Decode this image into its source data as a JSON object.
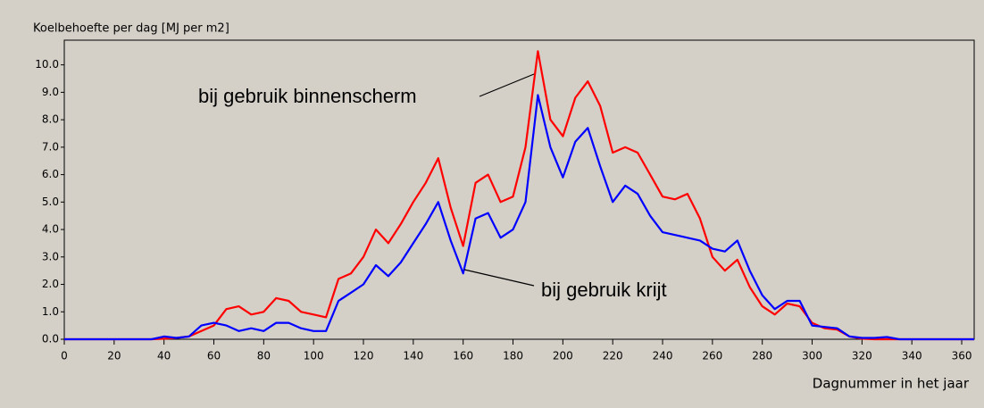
{
  "chart_data": {
    "type": "line",
    "title": "Koelbehoefte per dag [MJ per m2]",
    "x_label": "Dagnummer in het jaar",
    "x": [
      0,
      5,
      10,
      15,
      20,
      25,
      30,
      35,
      40,
      45,
      50,
      55,
      60,
      65,
      70,
      75,
      80,
      85,
      90,
      95,
      100,
      105,
      110,
      115,
      120,
      125,
      130,
      135,
      140,
      145,
      150,
      155,
      160,
      165,
      170,
      175,
      180,
      185,
      190,
      195,
      200,
      205,
      210,
      215,
      220,
      225,
      230,
      235,
      240,
      245,
      250,
      255,
      260,
      265,
      270,
      275,
      280,
      285,
      290,
      295,
      300,
      305,
      310,
      315,
      320,
      325,
      330,
      335,
      340,
      345,
      350,
      355,
      360,
      365
    ],
    "series": [
      {
        "name": "bij gebruik binnenscherm",
        "color": "#ff0000",
        "values": [
          0,
          0,
          0,
          0,
          0,
          0,
          0,
          0,
          0.02,
          0.05,
          0.1,
          0.3,
          0.5,
          1.1,
          1.2,
          0.9,
          1.0,
          1.5,
          1.4,
          1.0,
          0.9,
          0.8,
          2.2,
          2.4,
          3.0,
          4.0,
          3.5,
          4.2,
          5.0,
          5.7,
          6.6,
          4.8,
          3.4,
          5.7,
          6.0,
          5.0,
          5.2,
          7.0,
          10.5,
          8.0,
          7.4,
          8.8,
          9.4,
          8.5,
          6.8,
          7.0,
          6.8,
          6.0,
          5.2,
          5.1,
          5.3,
          4.4,
          3.0,
          2.5,
          2.9,
          1.9,
          1.2,
          0.9,
          1.3,
          1.2,
          0.6,
          0.4,
          0.35,
          0.1,
          0.02,
          0,
          0,
          0,
          0,
          0,
          0,
          0,
          0,
          0
        ]
      },
      {
        "name": "bij gebruik krijt",
        "color": "#0000ff",
        "values": [
          0,
          0,
          0,
          0,
          0,
          0,
          0,
          0,
          0.1,
          0.05,
          0.1,
          0.5,
          0.6,
          0.5,
          0.3,
          0.4,
          0.3,
          0.6,
          0.6,
          0.4,
          0.3,
          0.3,
          1.4,
          1.7,
          2.0,
          2.7,
          2.3,
          2.8,
          3.5,
          4.2,
          5.0,
          3.6,
          2.4,
          4.4,
          4.6,
          3.7,
          4.0,
          5.0,
          8.9,
          7.0,
          5.9,
          7.2,
          7.7,
          6.3,
          5.0,
          5.6,
          5.3,
          4.5,
          3.9,
          3.8,
          3.7,
          3.6,
          3.3,
          3.2,
          3.6,
          2.5,
          1.6,
          1.1,
          1.4,
          1.4,
          0.5,
          0.45,
          0.4,
          0.1,
          0.05,
          0.05,
          0.08,
          0,
          0,
          0,
          0,
          0,
          0,
          0
        ]
      }
    ],
    "xlim": [
      0,
      365
    ],
    "ylim": [
      0,
      10.9
    ],
    "xticks": [
      0,
      20,
      40,
      60,
      80,
      100,
      120,
      140,
      160,
      180,
      200,
      220,
      240,
      260,
      280,
      300,
      320,
      340,
      360
    ],
    "yticks": [
      {
        "value": 0,
        "label": "0.0"
      },
      {
        "value": 1,
        "label": "1.0"
      },
      {
        "value": 2,
        "label": "2.0"
      },
      {
        "value": 3,
        "label": "3.0"
      },
      {
        "value": 4,
        "label": "4.0"
      },
      {
        "value": 5,
        "label": "5.0"
      },
      {
        "value": 6,
        "label": "6.0"
      },
      {
        "value": 7,
        "label": "7.0"
      },
      {
        "value": 8,
        "label": "8.0"
      },
      {
        "value": 9,
        "label": "9.0"
      },
      {
        "value": 10,
        "label": "10.0"
      }
    ],
    "grid": false
  }
}
